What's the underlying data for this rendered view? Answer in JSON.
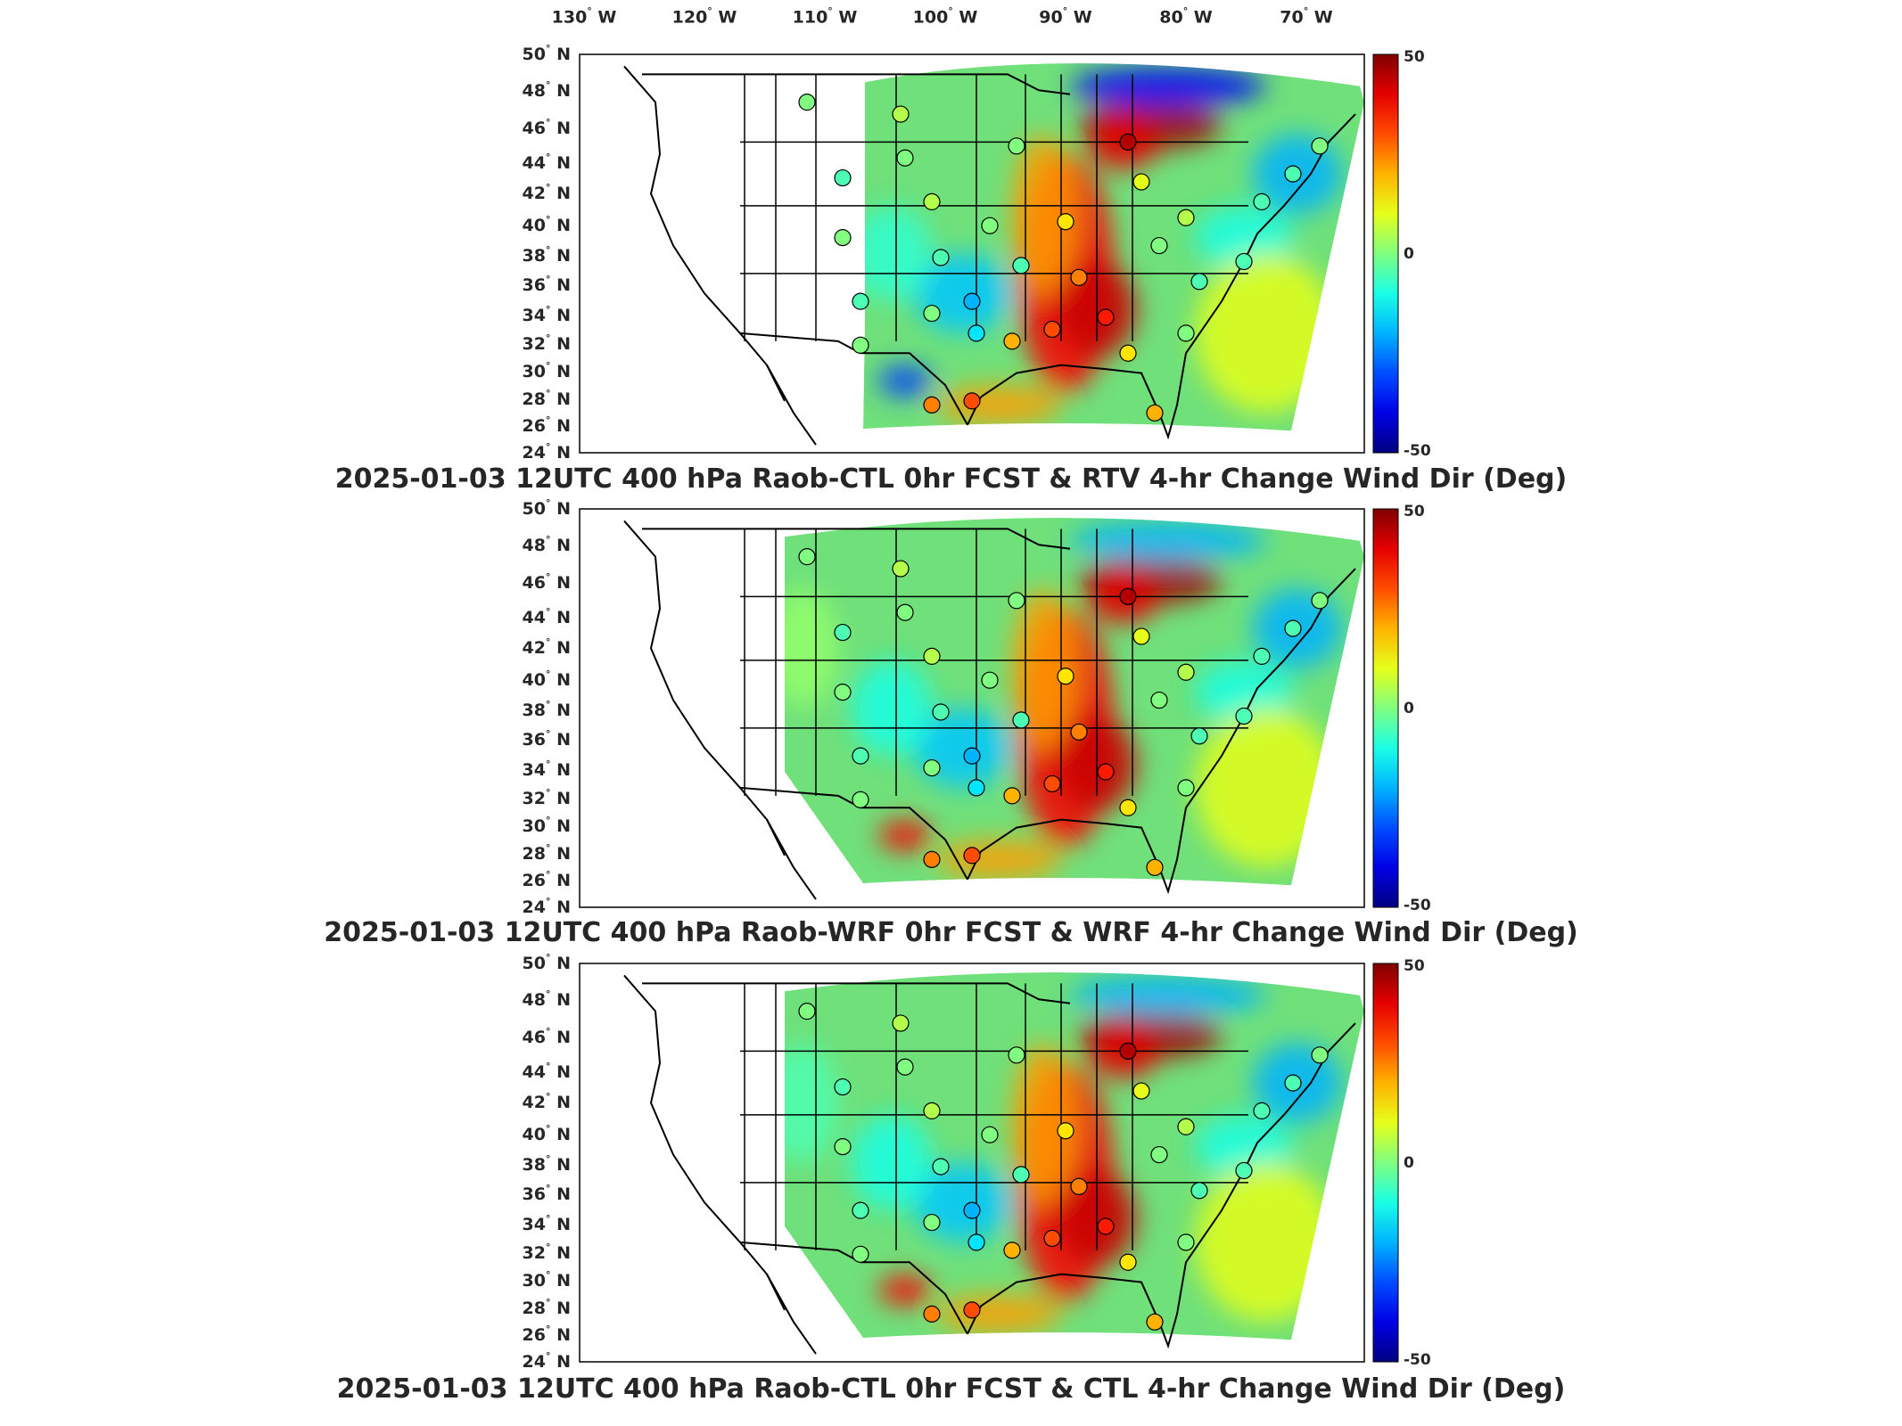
{
  "figure": {
    "lon_ticks": [
      "130",
      "120",
      "110",
      "100",
      "90",
      "80",
      "70"
    ],
    "lon_hemisphere": "W",
    "lat_ticks": [
      "50",
      "48",
      "46",
      "44",
      "42",
      "40",
      "38",
      "36",
      "34",
      "32",
      "30",
      "28",
      "26",
      "24"
    ],
    "lat_hemisphere": "N",
    "degree_symbol": "°",
    "colorbar": {
      "max": "50",
      "mid": "0",
      "min": "-50",
      "colormap": "jet"
    }
  },
  "panels": [
    {
      "id": "rtv",
      "caption": "2025-01-03 12UTC 400 hPa Raob-CTL 0hr FCST & RTV 4-hr Change Wind Dir (Deg)"
    },
    {
      "id": "wrf",
      "caption": "2025-01-03 12UTC 400 hPa Raob-WRF 0hr FCST & WRF 4-hr Change Wind Dir (Deg)"
    },
    {
      "id": "ctl",
      "caption": "2025-01-03 12UTC 400 hPa Raob-CTL 0hr FCST & CTL 4-hr Change Wind Dir (Deg)"
    }
  ],
  "colors": {
    "field_base": "#6fe07a",
    "warm_anomaly": "#e8502a",
    "cold_anomaly": "#2a7ff0",
    "border": "#000000"
  }
}
